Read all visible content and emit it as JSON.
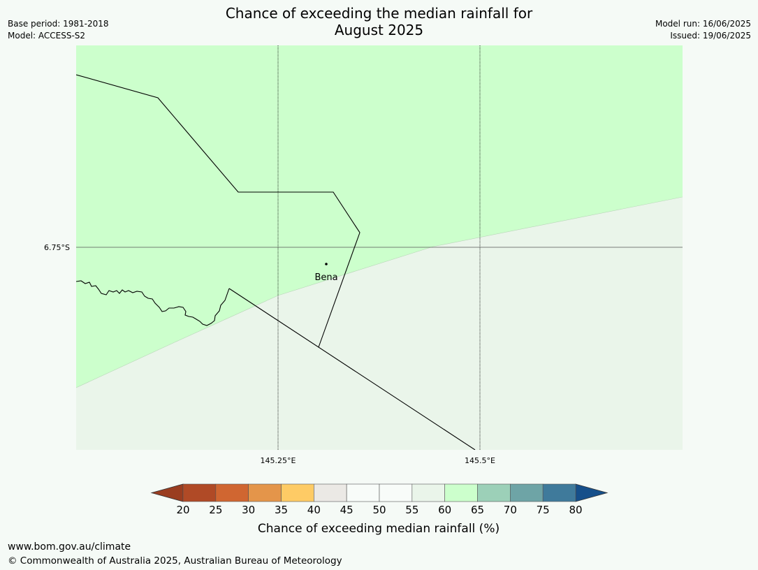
{
  "header": {
    "title_line1": "Chance of exceeding the median rainfall for",
    "title_line2": "August 2025",
    "base_period": "Base period: 1981-2018",
    "model": "Model: ACCESS-S2",
    "model_run": "Model run: 16/06/2025",
    "issued": "Issued: 19/06/2025"
  },
  "map": {
    "lat_label": "6.75°S",
    "lon_labels": [
      "145.25°E",
      "145.5°E"
    ],
    "place": "Bena",
    "region_colors": {
      "upper": "#ccffcc",
      "lower": "#eaf5ea"
    }
  },
  "colorbar": {
    "ticks": [
      "20",
      "25",
      "30",
      "35",
      "40",
      "45",
      "50",
      "55",
      "60",
      "65",
      "70",
      "75",
      "80"
    ],
    "colors": [
      "#b04a26",
      "#d06631",
      "#e4954a",
      "#fecb65",
      "#ebe9e5",
      "#f8fcf9",
      "#f8fcf9",
      "#eaf5ea",
      "#ccffcc",
      "#9cd0b8",
      "#6ea4a6",
      "#3f7a9b"
    ],
    "under_color": "#9a3d20",
    "over_color": "#164f8a",
    "label": "Chance of exceeding median rainfall (%)"
  },
  "footer": {
    "url": "www.bom.gov.au/climate",
    "copyright": "© Commonwealth of Australia 2025, Australian Bureau of Meteorology"
  }
}
